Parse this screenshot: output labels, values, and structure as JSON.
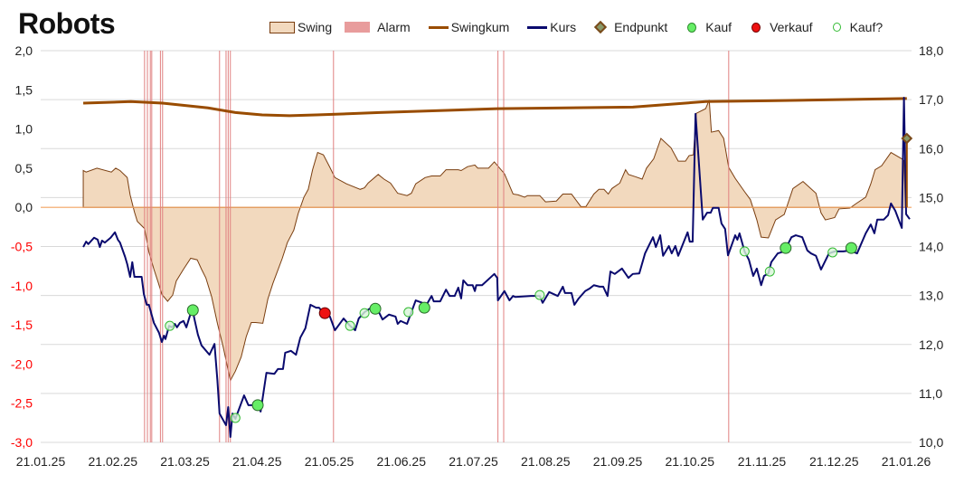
{
  "chart_data": {
    "type": "line",
    "title": "Robots",
    "x_unit": "months since 21.01.25",
    "xlim": [
      0,
      12.08
    ],
    "x_tick_labels": [
      "21.01.25",
      "21.02.25",
      "21.03.25",
      "21.04.25",
      "21.05.25",
      "21.06.25",
      "21.07.25",
      "21.08.25",
      "21.09.25",
      "21.10.25",
      "21.11.25",
      "21.12.25",
      "21.01.26"
    ],
    "left_axis": {
      "ylim": [
        -3,
        2
      ],
      "ticks": [
        "2,0",
        "1,5",
        "1,0",
        "0,5",
        "0,0",
        "-0,5",
        "-1,0",
        "-1,5",
        "-2,0",
        "-2,5",
        "-3,0"
      ],
      "tick_values": [
        2,
        1.5,
        1,
        0.5,
        0,
        -0.5,
        -1,
        -1.5,
        -2,
        -2.5,
        -3
      ]
    },
    "right_axis": {
      "ylim": [
        10,
        18
      ],
      "ticks": [
        "18,0",
        "17,0",
        "16,0",
        "15,0",
        "14,0",
        "13,0",
        "12,0",
        "11,0",
        "10,0"
      ],
      "tick_values": [
        18,
        17,
        16,
        15,
        14,
        13,
        12,
        11,
        10
      ]
    },
    "grid": true,
    "legend_position": "top",
    "legend": {
      "swing": "Swing",
      "alarm": "Alarm",
      "swingkum": "Swingkum",
      "kurs": "Kurs",
      "endpunkt": "Endpunkt",
      "kauf": "Kauf",
      "verkauf": "Verkauf",
      "kauf_q": "Kauf?"
    },
    "colors": {
      "swing_fill": "#f2d9be",
      "swing_line": "#7a3e10",
      "alarm": "#e08080",
      "swingkum": "#994c00",
      "kurs": "#0a0a6e",
      "endpunkt": "#7a4a1a",
      "kauf": "#66ee66",
      "verkauf": "#ee1111",
      "kauf_q": "#d8f5d8",
      "zero": "#f4a460",
      "grid": "#d9d9d9",
      "neg_label": "#ff0000"
    },
    "swing": [
      [
        0.59,
        0
      ],
      [
        0.59,
        0.47
      ],
      [
        0.63,
        0.45
      ],
      [
        0.78,
        0.5
      ],
      [
        0.98,
        0.45
      ],
      [
        1.04,
        0.5
      ],
      [
        1.1,
        0.47
      ],
      [
        1.2,
        0.38
      ],
      [
        1.24,
        0.16
      ],
      [
        1.3,
        -0.06
      ],
      [
        1.34,
        -0.18
      ],
      [
        1.44,
        -0.27
      ],
      [
        1.5,
        -0.57
      ],
      [
        1.57,
        -0.79
      ],
      [
        1.63,
        -0.96
      ],
      [
        1.68,
        -1.11
      ],
      [
        1.76,
        -1.2
      ],
      [
        1.83,
        -1.12
      ],
      [
        1.88,
        -0.94
      ],
      [
        1.98,
        -0.79
      ],
      [
        2.08,
        -0.65
      ],
      [
        2.17,
        -0.67
      ],
      [
        2.23,
        -0.79
      ],
      [
        2.29,
        -0.9
      ],
      [
        2.37,
        -1.14
      ],
      [
        2.45,
        -1.48
      ],
      [
        2.53,
        -1.78
      ],
      [
        2.63,
        -2.21
      ],
      [
        2.7,
        -2.09
      ],
      [
        2.78,
        -1.91
      ],
      [
        2.85,
        -1.65
      ],
      [
        2.92,
        -1.47
      ],
      [
        2.98,
        -1.47
      ],
      [
        3.08,
        -1.48
      ],
      [
        3.15,
        -1.17
      ],
      [
        3.22,
        -0.97
      ],
      [
        3.35,
        -0.65
      ],
      [
        3.42,
        -0.45
      ],
      [
        3.51,
        -0.29
      ],
      [
        3.57,
        -0.08
      ],
      [
        3.65,
        0.13
      ],
      [
        3.71,
        0.23
      ],
      [
        3.77,
        0.48
      ],
      [
        3.84,
        0.7
      ],
      [
        3.92,
        0.67
      ],
      [
        4.01,
        0.51
      ],
      [
        4.08,
        0.38
      ],
      [
        4.24,
        0.3
      ],
      [
        4.43,
        0.23
      ],
      [
        4.49,
        0.25
      ],
      [
        4.54,
        0.31
      ],
      [
        4.68,
        0.42
      ],
      [
        4.76,
        0.36
      ],
      [
        4.85,
        0.31
      ],
      [
        4.95,
        0.18
      ],
      [
        5.08,
        0.15
      ],
      [
        5.14,
        0.18
      ],
      [
        5.2,
        0.3
      ],
      [
        5.33,
        0.38
      ],
      [
        5.42,
        0.4
      ],
      [
        5.54,
        0.4
      ],
      [
        5.62,
        0.48
      ],
      [
        5.79,
        0.48
      ],
      [
        5.83,
        0.47
      ],
      [
        5.92,
        0.52
      ],
      [
        6.02,
        0.54
      ],
      [
        6.06,
        0.5
      ],
      [
        6.21,
        0.5
      ],
      [
        6.29,
        0.58
      ],
      [
        6.43,
        0.43
      ],
      [
        6.55,
        0.17
      ],
      [
        6.62,
        0.16
      ],
      [
        6.71,
        0.13
      ],
      [
        6.75,
        0.15
      ],
      [
        6.92,
        0.15
      ],
      [
        7.0,
        0.07
      ],
      [
        7.15,
        0.08
      ],
      [
        7.24,
        0.17
      ],
      [
        7.36,
        0.17
      ],
      [
        7.49,
        0.01
      ],
      [
        7.56,
        0.01
      ],
      [
        7.67,
        0.17
      ],
      [
        7.74,
        0.23
      ],
      [
        7.81,
        0.23
      ],
      [
        7.87,
        0.17
      ],
      [
        7.92,
        0.24
      ],
      [
        8.03,
        0.31
      ],
      [
        8.11,
        0.48
      ],
      [
        8.15,
        0.42
      ],
      [
        8.25,
        0.39
      ],
      [
        8.34,
        0.36
      ],
      [
        8.4,
        0.5
      ],
      [
        8.5,
        0.62
      ],
      [
        8.6,
        0.88
      ],
      [
        8.74,
        0.76
      ],
      [
        8.84,
        0.59
      ],
      [
        8.94,
        0.59
      ],
      [
        8.99,
        0.66
      ],
      [
        9.05,
        0.67
      ],
      [
        9.09,
        1.2
      ],
      [
        9.22,
        1.26
      ],
      [
        9.27,
        1.37
      ],
      [
        9.3,
        0.96
      ],
      [
        9.4,
        0.98
      ],
      [
        9.47,
        0.88
      ],
      [
        9.54,
        0.51
      ],
      [
        9.63,
        0.37
      ],
      [
        9.76,
        0.2
      ],
      [
        9.84,
        0.1
      ],
      [
        9.93,
        -0.16
      ],
      [
        9.99,
        -0.38
      ],
      [
        10.09,
        -0.39
      ],
      [
        10.19,
        -0.16
      ],
      [
        10.31,
        -0.09
      ],
      [
        10.43,
        0.24
      ],
      [
        10.57,
        0.33
      ],
      [
        10.75,
        0.18
      ],
      [
        10.82,
        -0.07
      ],
      [
        10.88,
        -0.16
      ],
      [
        11.01,
        -0.13
      ],
      [
        11.07,
        -0.02
      ],
      [
        11.22,
        -0.01
      ],
      [
        11.31,
        0.05
      ],
      [
        11.44,
        0.13
      ],
      [
        11.51,
        0.3
      ],
      [
        11.57,
        0.48
      ],
      [
        11.66,
        0.53
      ],
      [
        11.79,
        0.7
      ],
      [
        11.94,
        0.62
      ],
      [
        11.97,
        0.6
      ],
      [
        11.99,
        0
      ]
    ],
    "swingkum": [
      [
        0.59,
        1.33
      ],
      [
        1.25,
        1.35
      ],
      [
        1.69,
        1.33
      ],
      [
        2.32,
        1.27
      ],
      [
        2.7,
        1.21
      ],
      [
        3.07,
        1.18
      ],
      [
        3.45,
        1.17
      ],
      [
        3.82,
        1.18
      ],
      [
        4.7,
        1.21
      ],
      [
        6.33,
        1.26
      ],
      [
        8.21,
        1.28
      ],
      [
        9.22,
        1.35
      ],
      [
        10.09,
        1.36
      ],
      [
        12.01,
        1.39
      ]
    ],
    "kurs": [
      [
        0.59,
        13.99
      ],
      [
        0.63,
        14.1
      ],
      [
        0.66,
        14.05
      ],
      [
        0.74,
        14.18
      ],
      [
        0.79,
        14.14
      ],
      [
        0.82,
        13.99
      ],
      [
        0.85,
        14.12
      ],
      [
        0.89,
        14.08
      ],
      [
        0.97,
        14.18
      ],
      [
        1.03,
        14.29
      ],
      [
        1.07,
        14.14
      ],
      [
        1.1,
        14.08
      ],
      [
        1.17,
        13.79
      ],
      [
        1.2,
        13.64
      ],
      [
        1.24,
        13.38
      ],
      [
        1.27,
        13.68
      ],
      [
        1.3,
        13.38
      ],
      [
        1.4,
        13.38
      ],
      [
        1.43,
        13.03
      ],
      [
        1.47,
        12.81
      ],
      [
        1.5,
        12.81
      ],
      [
        1.57,
        12.44
      ],
      [
        1.64,
        12.24
      ],
      [
        1.68,
        12.05
      ],
      [
        1.71,
        12.18
      ],
      [
        1.73,
        12.11
      ],
      [
        1.78,
        12.38
      ],
      [
        1.82,
        12.35
      ],
      [
        1.86,
        12.42
      ],
      [
        1.89,
        12.35
      ],
      [
        1.93,
        12.44
      ],
      [
        1.98,
        12.48
      ],
      [
        2.02,
        12.35
      ],
      [
        2.07,
        12.59
      ],
      [
        2.11,
        12.7
      ],
      [
        2.13,
        12.53
      ],
      [
        2.18,
        12.2
      ],
      [
        2.23,
        11.98
      ],
      [
        2.34,
        11.79
      ],
      [
        2.41,
        12.01
      ],
      [
        2.45,
        11.27
      ],
      [
        2.48,
        10.59
      ],
      [
        2.57,
        10.35
      ],
      [
        2.6,
        10.72
      ],
      [
        2.63,
        10.11
      ],
      [
        2.66,
        10.59
      ],
      [
        2.7,
        10.48
      ],
      [
        2.82,
        10.96
      ],
      [
        2.88,
        10.76
      ],
      [
        3.01,
        10.76
      ],
      [
        3.05,
        10.63
      ],
      [
        3.13,
        11.42
      ],
      [
        3.24,
        11.4
      ],
      [
        3.29,
        11.5
      ],
      [
        3.36,
        11.5
      ],
      [
        3.39,
        11.83
      ],
      [
        3.47,
        11.87
      ],
      [
        3.54,
        11.79
      ],
      [
        3.6,
        12.14
      ],
      [
        3.67,
        12.33
      ],
      [
        3.74,
        12.81
      ],
      [
        3.82,
        12.75
      ],
      [
        3.86,
        12.75
      ],
      [
        3.92,
        12.64
      ],
      [
        4.01,
        12.57
      ],
      [
        4.08,
        12.29
      ],
      [
        4.2,
        12.53
      ],
      [
        4.29,
        12.38
      ],
      [
        4.36,
        12.29
      ],
      [
        4.41,
        12.53
      ],
      [
        4.49,
        12.66
      ],
      [
        4.58,
        12.75
      ],
      [
        4.66,
        12.75
      ],
      [
        4.74,
        12.51
      ],
      [
        4.83,
        12.61
      ],
      [
        4.92,
        12.57
      ],
      [
        4.95,
        12.42
      ],
      [
        4.99,
        12.48
      ],
      [
        5.08,
        12.42
      ],
      [
        5.2,
        12.9
      ],
      [
        5.29,
        12.85
      ],
      [
        5.35,
        12.81
      ],
      [
        5.42,
        12.99
      ],
      [
        5.45,
        12.88
      ],
      [
        5.54,
        12.88
      ],
      [
        5.62,
        13.12
      ],
      [
        5.67,
        12.99
      ],
      [
        5.74,
        12.99
      ],
      [
        5.79,
        13.16
      ],
      [
        5.83,
        12.94
      ],
      [
        5.86,
        13.31
      ],
      [
        5.92,
        13.21
      ],
      [
        5.99,
        13.21
      ],
      [
        6.02,
        13.09
      ],
      [
        6.04,
        13.21
      ],
      [
        6.12,
        13.21
      ],
      [
        6.29,
        13.44
      ],
      [
        6.33,
        13.36
      ],
      [
        6.34,
        12.9
      ],
      [
        6.43,
        13.09
      ],
      [
        6.5,
        12.9
      ],
      [
        6.55,
        12.99
      ],
      [
        6.58,
        12.97
      ],
      [
        6.8,
        12.99
      ],
      [
        6.92,
        12.99
      ],
      [
        6.96,
        12.85
      ],
      [
        7.05,
        13.07
      ],
      [
        7.17,
        12.99
      ],
      [
        7.24,
        13.18
      ],
      [
        7.27,
        13.05
      ],
      [
        7.36,
        13.05
      ],
      [
        7.4,
        12.81
      ],
      [
        7.46,
        12.94
      ],
      [
        7.55,
        13.09
      ],
      [
        7.61,
        13.14
      ],
      [
        7.67,
        13.21
      ],
      [
        7.75,
        13.18
      ],
      [
        7.8,
        13.18
      ],
      [
        7.86,
        12.99
      ],
      [
        7.9,
        13.49
      ],
      [
        7.96,
        13.44
      ],
      [
        8.06,
        13.55
      ],
      [
        8.15,
        13.36
      ],
      [
        8.21,
        13.44
      ],
      [
        8.3,
        13.45
      ],
      [
        8.38,
        13.86
      ],
      [
        8.49,
        14.19
      ],
      [
        8.53,
        13.99
      ],
      [
        8.59,
        14.23
      ],
      [
        8.63,
        13.81
      ],
      [
        8.71,
        14.01
      ],
      [
        8.75,
        13.86
      ],
      [
        8.8,
        14.01
      ],
      [
        8.84,
        13.81
      ],
      [
        8.97,
        14.29
      ],
      [
        9.0,
        14.1
      ],
      [
        9.04,
        14.1
      ],
      [
        9.08,
        16.71
      ],
      [
        9.18,
        14.55
      ],
      [
        9.24,
        14.69
      ],
      [
        9.29,
        14.69
      ],
      [
        9.32,
        14.79
      ],
      [
        9.4,
        14.79
      ],
      [
        9.44,
        14.47
      ],
      [
        9.49,
        14.36
      ],
      [
        9.53,
        13.82
      ],
      [
        9.63,
        14.23
      ],
      [
        9.66,
        14.14
      ],
      [
        9.69,
        14.27
      ],
      [
        9.76,
        13.9
      ],
      [
        9.82,
        13.73
      ],
      [
        9.88,
        13.4
      ],
      [
        9.93,
        13.55
      ],
      [
        9.99,
        13.21
      ],
      [
        10.03,
        13.4
      ],
      [
        10.09,
        13.45
      ],
      [
        10.13,
        13.68
      ],
      [
        10.22,
        13.86
      ],
      [
        10.31,
        13.9
      ],
      [
        10.41,
        14.19
      ],
      [
        10.47,
        14.23
      ],
      [
        10.56,
        14.19
      ],
      [
        10.63,
        13.92
      ],
      [
        10.68,
        13.86
      ],
      [
        10.75,
        13.81
      ],
      [
        10.82,
        13.53
      ],
      [
        10.93,
        13.86
      ],
      [
        11.01,
        13.9
      ],
      [
        11.13,
        13.9
      ],
      [
        11.22,
        13.92
      ],
      [
        11.32,
        13.86
      ],
      [
        11.44,
        14.27
      ],
      [
        11.51,
        14.45
      ],
      [
        11.56,
        14.27
      ],
      [
        11.6,
        14.55
      ],
      [
        11.69,
        14.55
      ],
      [
        11.75,
        14.64
      ],
      [
        11.79,
        14.88
      ],
      [
        11.85,
        14.73
      ],
      [
        11.94,
        14.38
      ],
      [
        11.97,
        17.04
      ],
      [
        12.0,
        14.66
      ],
      [
        12.05,
        14.56
      ]
    ],
    "endpunkt": [
      12.01,
      0.88
    ],
    "kauf": [
      [
        2.11,
        12.7
      ],
      [
        3.01,
        10.76
      ],
      [
        4.64,
        12.73
      ],
      [
        5.32,
        12.75
      ],
      [
        10.33,
        13.97
      ],
      [
        11.24,
        13.97
      ]
    ],
    "verkauf": [
      [
        3.94,
        12.64
      ]
    ],
    "kauf_q": [
      [
        1.79,
        12.38
      ],
      [
        2.7,
        10.5
      ],
      [
        4.29,
        12.38
      ],
      [
        4.49,
        12.64
      ],
      [
        5.1,
        12.66
      ],
      [
        6.92,
        13.01
      ],
      [
        9.76,
        13.9
      ],
      [
        10.11,
        13.49
      ],
      [
        10.98,
        13.88
      ]
    ],
    "alarm": [
      1.44,
      1.48,
      1.52,
      1.54,
      1.66,
      1.69,
      2.48,
      2.57,
      2.6,
      2.63,
      4.06,
      6.34,
      6.42,
      9.54
    ]
  }
}
